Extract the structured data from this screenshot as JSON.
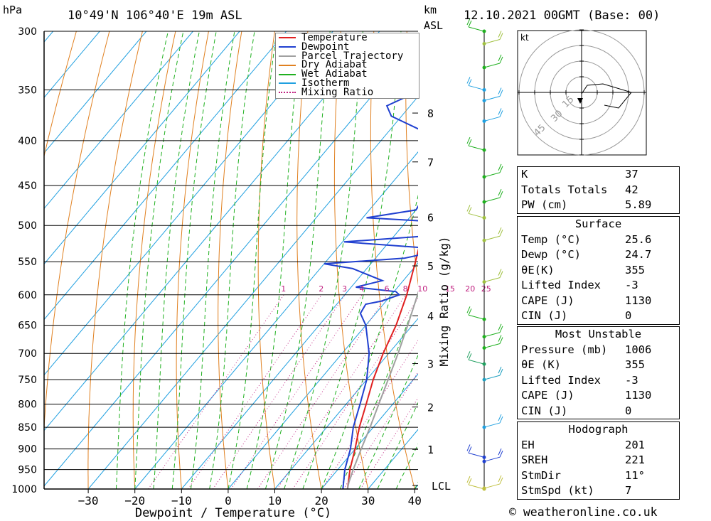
{
  "header": {
    "location": "10°49'N  106°40'E  19m  ASL",
    "run": "12.10.2021  00GMT  (Base: 00)",
    "unit_pressure": "hPa",
    "unit_km": "km",
    "unit_asl": "ASL"
  },
  "legend": [
    {
      "label": "Temperature",
      "color": "#e02020",
      "style": "solid"
    },
    {
      "label": "Dewpoint",
      "color": "#2040d0",
      "style": "solid"
    },
    {
      "label": "Parcel Trajectory",
      "color": "#a0a0a0",
      "style": "solid"
    },
    {
      "label": "Dry Adiabat",
      "color": "#e08020",
      "style": "solid"
    },
    {
      "label": "Wet Adiabat",
      "color": "#20b020",
      "style": "solid"
    },
    {
      "label": "Isotherm",
      "color": "#20a0e0",
      "style": "solid"
    },
    {
      "label": "Mixing Ratio",
      "color": "#c02080",
      "style": "dotted"
    }
  ],
  "axes": {
    "xlabel": "Dewpoint / Temperature (°C)",
    "ylabel_right": "Mixing Ratio (g/kg)",
    "lcl_label": "LCL"
  },
  "chart_data": {
    "type": "line",
    "title": "",
    "pressure_levels_hpa": [
      300,
      350,
      400,
      450,
      500,
      550,
      600,
      650,
      700,
      750,
      800,
      850,
      900,
      950,
      1000
    ],
    "x_ticks_c": [
      -30,
      -20,
      -10,
      0,
      10,
      20,
      30,
      40
    ],
    "xlim_c": [
      -40,
      40
    ],
    "ylim_hpa": [
      1000,
      300
    ],
    "height_km_ticks": [
      {
        "km": 1,
        "p": 901
      },
      {
        "km": 2,
        "p": 806
      },
      {
        "km": 3,
        "p": 719
      },
      {
        "km": 4,
        "p": 634
      },
      {
        "km": 5,
        "p": 556
      },
      {
        "km": 6,
        "p": 489
      },
      {
        "km": 7,
        "p": 423
      },
      {
        "km": 8,
        "p": 372
      }
    ],
    "mixing_ratio_labels": [
      1,
      2,
      3,
      4,
      6,
      8,
      10,
      15,
      20,
      25
    ],
    "series": [
      {
        "name": "Temperature",
        "color": "#e02020",
        "points": [
          [
            1000,
            25.6
          ],
          [
            950,
            22.6
          ],
          [
            900,
            20.0
          ],
          [
            850,
            17.0
          ],
          [
            800,
            14.3
          ],
          [
            750,
            11.4
          ],
          [
            700,
            8.8
          ],
          [
            650,
            6.5
          ],
          [
            600,
            3.3
          ],
          [
            550,
            -0.8
          ],
          [
            520,
            -3.5
          ],
          [
            500,
            -5.6
          ],
          [
            480,
            -6.4
          ],
          [
            450,
            -10.4
          ],
          [
            400,
            -17.0
          ],
          [
            380,
            -20.0
          ],
          [
            370,
            -22.0
          ],
          [
            360,
            -24.4
          ]
        ]
      },
      {
        "name": "Dewpoint",
        "color": "#2040d0",
        "points": [
          [
            1000,
            24.6
          ],
          [
            950,
            21.5
          ],
          [
            900,
            19.0
          ],
          [
            850,
            15.7
          ],
          [
            800,
            13.0
          ],
          [
            750,
            10.0
          ],
          [
            700,
            5.8
          ],
          [
            650,
            0.0
          ],
          [
            630,
            -3.3
          ],
          [
            615,
            -3.8
          ],
          [
            610,
            -1.0
          ],
          [
            600,
            1.7
          ],
          [
            595,
            0.4
          ],
          [
            588,
            -9.0
          ],
          [
            578,
            -4.5
          ],
          [
            560,
            -13.0
          ],
          [
            553,
            -20.0
          ],
          [
            545,
            -3.8
          ],
          [
            540,
            -1.0
          ],
          [
            530,
            -1.9
          ],
          [
            522,
            -19.7
          ],
          [
            513,
            -1.0
          ],
          [
            505,
            -2.3
          ],
          [
            495,
            -3.5
          ],
          [
            490,
            -19.2
          ],
          [
            480,
            -10.0
          ],
          [
            450,
            -11.4
          ],
          [
            420,
            -12.5
          ],
          [
            400,
            -15.8
          ],
          [
            390,
            -22.8
          ],
          [
            375,
            -32.2
          ],
          [
            365,
            -35.0
          ],
          [
            355,
            -32.0
          ],
          [
            345,
            -35.0
          ],
          [
            335,
            -33.6
          ],
          [
            320,
            -35.0
          ],
          [
            300,
            -36.5
          ]
        ]
      },
      {
        "name": "Parcel Trajectory",
        "color": "#a0a0a0",
        "points": [
          [
            1000,
            25.6
          ],
          [
            983,
            24.7
          ],
          [
            950,
            23.3
          ],
          [
            900,
            21.3
          ],
          [
            850,
            19.3
          ],
          [
            800,
            17.0
          ],
          [
            750,
            14.6
          ],
          [
            700,
            12.0
          ],
          [
            650,
            9.0
          ],
          [
            600,
            5.6
          ],
          [
            550,
            2.0
          ],
          [
            500,
            -2.0
          ],
          [
            450,
            -7.0
          ],
          [
            400,
            -12.0
          ],
          [
            370,
            -16.5
          ]
        ]
      }
    ],
    "wind_barbs": [
      {
        "p": 1000,
        "color": "#c0c040"
      },
      {
        "p": 998,
        "color": "#c0c040"
      },
      {
        "p": 930,
        "color": "#2040d0"
      },
      {
        "p": 920,
        "color": "#2040d0"
      },
      {
        "p": 850,
        "color": "#20a0e0"
      },
      {
        "p": 750,
        "color": "#20a0c0"
      },
      {
        "p": 720,
        "color": "#20a060"
      },
      {
        "p": 690,
        "color": "#20b020"
      },
      {
        "p": 670,
        "color": "#20b020"
      },
      {
        "p": 640,
        "color": "#20b020"
      },
      {
        "p": 580,
        "color": "#a0c040"
      },
      {
        "p": 520,
        "color": "#a0c040"
      },
      {
        "p": 490,
        "color": "#a0c040"
      },
      {
        "p": 470,
        "color": "#20b020"
      },
      {
        "p": 440,
        "color": "#20b020"
      },
      {
        "p": 410,
        "color": "#20b020"
      },
      {
        "p": 380,
        "color": "#20a0e0"
      },
      {
        "p": 360,
        "color": "#20a0e0"
      },
      {
        "p": 350,
        "color": "#20a0e0"
      },
      {
        "p": 330,
        "color": "#20b020"
      },
      {
        "p": 310,
        "color": "#a0c040"
      },
      {
        "p": 300,
        "color": "#20b020"
      }
    ]
  },
  "hodograph": {
    "unit_label": "kt",
    "ring_labels": [
      "15",
      "30",
      "45"
    ]
  },
  "indices": {
    "general": [
      {
        "label": "K",
        "value": "37"
      },
      {
        "label": "Totals Totals",
        "value": "42"
      },
      {
        "label": "PW (cm)",
        "value": "5.89"
      }
    ],
    "surface_title": "Surface",
    "surface": [
      {
        "label": "Temp (°C)",
        "value": "25.6"
      },
      {
        "label": "Dewp (°C)",
        "value": "24.7"
      },
      {
        "label": "θE(K)",
        "value": "355"
      },
      {
        "label": "Lifted Index",
        "value": "-3"
      },
      {
        "label": "CAPE (J)",
        "value": "1130"
      },
      {
        "label": "CIN (J)",
        "value": "0"
      }
    ],
    "mu_title": "Most Unstable",
    "most_unstable": [
      {
        "label": "Pressure (mb)",
        "value": "1006"
      },
      {
        "label": "θE (K)",
        "value": "355"
      },
      {
        "label": "Lifted Index",
        "value": "-3"
      },
      {
        "label": "CAPE (J)",
        "value": "1130"
      },
      {
        "label": "CIN (J)",
        "value": "0"
      }
    ],
    "hodo_title": "Hodograph",
    "hodograph": [
      {
        "label": "EH",
        "value": "201"
      },
      {
        "label": "SREH",
        "value": "221"
      },
      {
        "label": "StmDir",
        "value": "11°"
      },
      {
        "label": "StmSpd (kt)",
        "value": "7"
      }
    ]
  },
  "footer": {
    "copyright": "© weatheronline.co.uk"
  }
}
